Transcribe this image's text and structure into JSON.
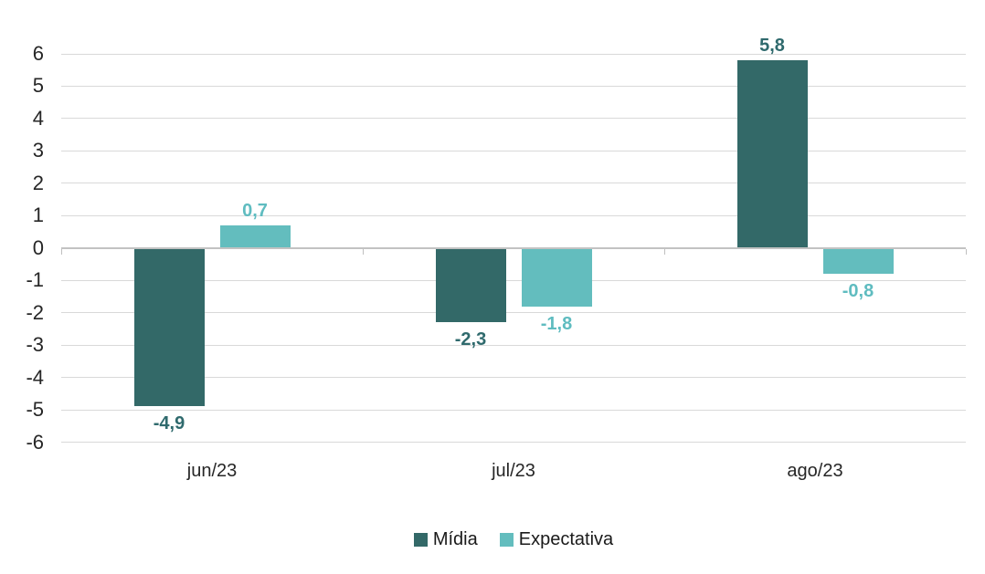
{
  "chart_data": {
    "type": "bar",
    "categories": [
      "jun/23",
      "jul/23",
      "ago/23"
    ],
    "series": [
      {
        "name": "Mídia",
        "color": "#336968",
        "label_color": "#2F6A6D",
        "values": [
          -4.9,
          -2.3,
          5.8
        ],
        "labels": [
          "-4,9",
          "-2,3",
          "5,8"
        ]
      },
      {
        "name": "Expectativa",
        "color": "#63BDBE",
        "label_color": "#5FBCC0",
        "values": [
          0.7,
          -1.8,
          -0.8
        ],
        "labels": [
          "0,7",
          "-1,8",
          "-0,8"
        ]
      }
    ],
    "xlabel": "",
    "ylabel": "",
    "ylim": [
      -6,
      6
    ],
    "yticks": [
      6,
      5,
      4,
      3,
      2,
      1,
      0,
      -1,
      -2,
      -3,
      -4,
      -5,
      -6
    ],
    "grid": true,
    "legend_position": "bottom"
  },
  "colors": {
    "background": "#FFFFFF",
    "gridline": "#D9D9D9",
    "axis_line": "#C2C2C2",
    "axis_tick": "#BFBFBF",
    "axis_text": "#262626"
  }
}
